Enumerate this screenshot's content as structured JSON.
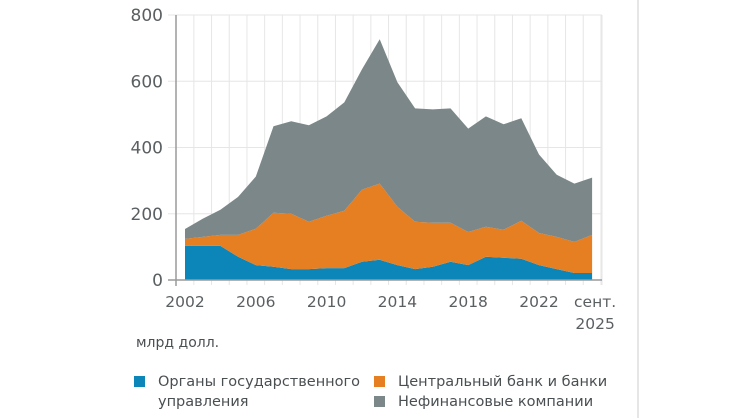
{
  "chart_data": {
    "type": "area",
    "stacked": true,
    "title": "",
    "xlabel": "",
    "ylabel": "млрд долл.",
    "ylim": [
      0,
      800
    ],
    "yticks": [
      "0",
      "200",
      "400",
      "600",
      "800"
    ],
    "xtick_labels": [
      "2002",
      "2006",
      "2010",
      "2014",
      "2018",
      "2022",
      "сент.\n2025"
    ],
    "grid": true,
    "legend_position": "bottom",
    "x": [
      "2002",
      "2003",
      "2004",
      "2005",
      "2006",
      "2007",
      "2008",
      "2009",
      "2010",
      "2011",
      "2012",
      "2013",
      "2014",
      "2015",
      "2016",
      "2017",
      "2018",
      "2019",
      "2020",
      "2021",
      "2022",
      "2023",
      "2024",
      "сент. 2025"
    ],
    "series": [
      {
        "name": "Органы государственного управления",
        "color": "#0c86b8",
        "values": [
          103,
          103,
          103,
          70,
          45,
          40,
          33,
          33,
          36,
          36,
          55,
          61,
          45,
          33,
          40,
          55,
          45,
          70,
          67,
          64,
          45,
          33,
          21,
          21
        ]
      },
      {
        "name": "Центральный банк и банки",
        "color": "#e67e22",
        "values": [
          21,
          27,
          33,
          66,
          110,
          163,
          167,
          143,
          158,
          173,
          218,
          230,
          176,
          143,
          133,
          118,
          100,
          91,
          85,
          115,
          97,
          97,
          94,
          115
        ]
      },
      {
        "name": "Нефинансовые компании",
        "color": "#7b8788",
        "values": [
          30,
          55,
          76,
          115,
          157,
          261,
          279,
          291,
          300,
          327,
          363,
          436,
          376,
          342,
          342,
          345,
          312,
          333,
          318,
          309,
          237,
          188,
          176,
          173
        ]
      }
    ],
    "totals": [
      154,
      185,
      212,
      251,
      312,
      464,
      479,
      467,
      494,
      536,
      636,
      727,
      597,
      518,
      515,
      518,
      457,
      494,
      470,
      488,
      379,
      318,
      291,
      309
    ]
  },
  "labels": {
    "unit": "млрд долл.",
    "legend": [
      {
        "label": "Органы государственного управления",
        "color": "#0c86b8"
      },
      {
        "label": "Центральный банк и банки",
        "color": "#e67e22"
      },
      {
        "label": "Нефинансовые компании",
        "color": "#7b8788"
      }
    ]
  }
}
